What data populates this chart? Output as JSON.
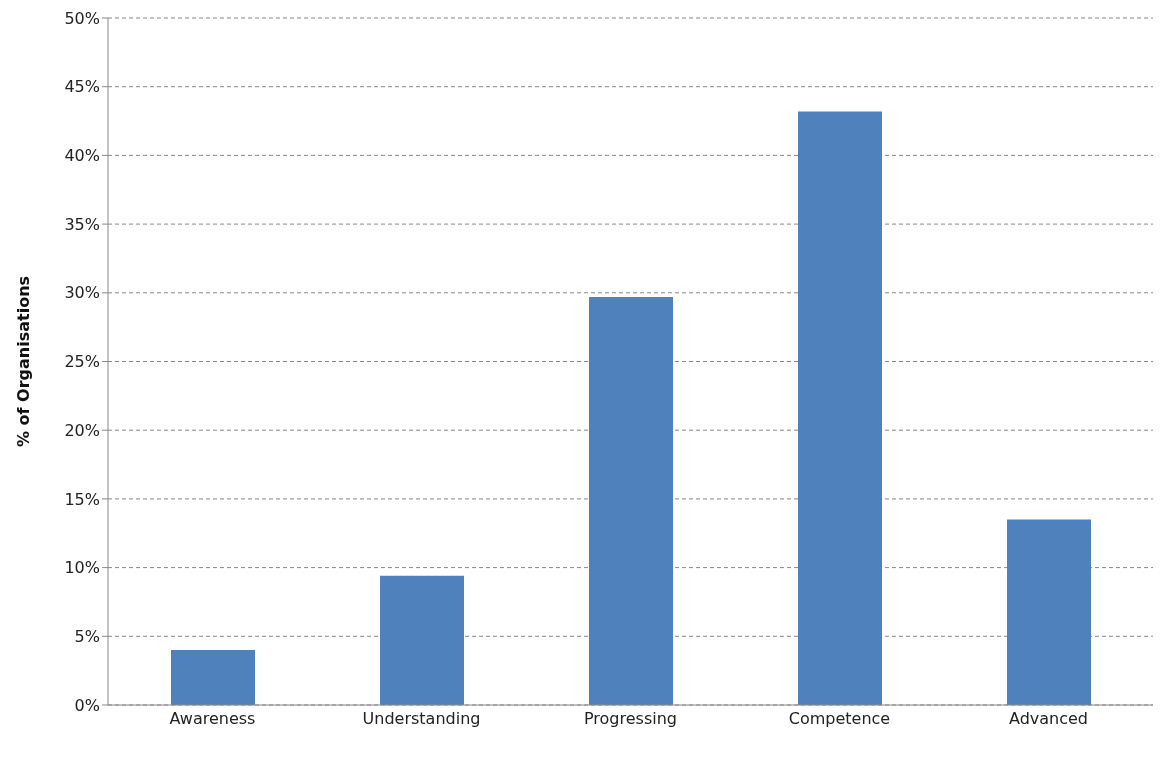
{
  "chart_data": {
    "type": "bar",
    "ylabel": "% of Organisations",
    "categories": [
      "Awareness",
      "Understanding",
      "Progressing",
      "Competence",
      "Advanced"
    ],
    "values": [
      4.0,
      9.4,
      29.7,
      43.2,
      13.5
    ],
    "color": "#4f81bd",
    "ylim": [
      0,
      50
    ],
    "yticks": [
      {
        "value": 0,
        "label": "0%"
      },
      {
        "value": 5,
        "label": "5%"
      },
      {
        "value": 10,
        "label": "10%"
      },
      {
        "value": 15,
        "label": "15%"
      },
      {
        "value": 20,
        "label": "20%"
      },
      {
        "value": 25,
        "label": "25%"
      },
      {
        "value": 30,
        "label": "30%"
      },
      {
        "value": 35,
        "label": "35%"
      },
      {
        "value": 40,
        "label": "40%"
      },
      {
        "value": 45,
        "label": "45%"
      },
      {
        "value": 50,
        "label": "50%"
      }
    ],
    "grid": "y",
    "legend": false
  }
}
